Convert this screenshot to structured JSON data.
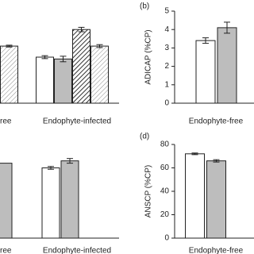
{
  "chart_data": [
    {
      "type": "bar",
      "categories": [
        "ree",
        "Endophyte-infected"
      ],
      "ylim": [
        0,
        5
      ],
      "series": [
        {
          "color": "#ffffff",
          "pattern": "solid",
          "values": [
            null,
            2.5
          ],
          "errors": [
            null,
            0.08
          ]
        },
        {
          "color": "#bdbdbd",
          "pattern": "solid",
          "values": [
            null,
            2.4
          ],
          "errors": [
            null,
            0.15
          ]
        },
        {
          "color": "#ffffff",
          "pattern": "dense-hatch",
          "values": [
            null,
            4.0
          ],
          "errors": [
            null,
            0.12
          ]
        },
        {
          "color": "#ffffff",
          "pattern": "light-hatch",
          "values": [
            3.1,
            3.1
          ],
          "errors": [
            0.05,
            0.08
          ]
        }
      ]
    },
    {
      "type": "bar",
      "label": "(b)",
      "ylabel": "ADICAP (%CP)",
      "categories": [
        "Endophyte-free"
      ],
      "ylim": [
        0,
        5
      ],
      "yticks": [
        0,
        1,
        2,
        3,
        4,
        5
      ],
      "series": [
        {
          "color": "#ffffff",
          "pattern": "solid",
          "values": [
            3.4
          ],
          "errors": [
            0.15
          ]
        },
        {
          "color": "#bdbdbd",
          "pattern": "solid",
          "values": [
            4.1
          ],
          "errors": [
            0.3
          ]
        }
      ]
    },
    {
      "type": "bar",
      "categories": [
        "ree",
        "Endophyte-infected"
      ],
      "ylim": [
        0,
        80
      ],
      "series": [
        {
          "color": "#ffffff",
          "pattern": "solid",
          "values": [
            null,
            60
          ],
          "errors": [
            null,
            1.2
          ]
        },
        {
          "color": "#bdbdbd",
          "pattern": "solid",
          "values": [
            64,
            66
          ],
          "errors": [
            null,
            2
          ]
        }
      ]
    },
    {
      "type": "bar",
      "label": "(d)",
      "ylabel": "ANSCP (%CP)",
      "categories": [
        "Endophyte-free"
      ],
      "ylim": [
        0,
        80
      ],
      "yticks": [
        0,
        20,
        40,
        60,
        80
      ],
      "series": [
        {
          "color": "#ffffff",
          "pattern": "solid",
          "values": [
            72
          ],
          "errors": [
            0.7
          ]
        },
        {
          "color": "#bdbdbd",
          "pattern": "solid",
          "values": [
            66
          ],
          "errors": [
            1
          ]
        }
      ]
    }
  ]
}
